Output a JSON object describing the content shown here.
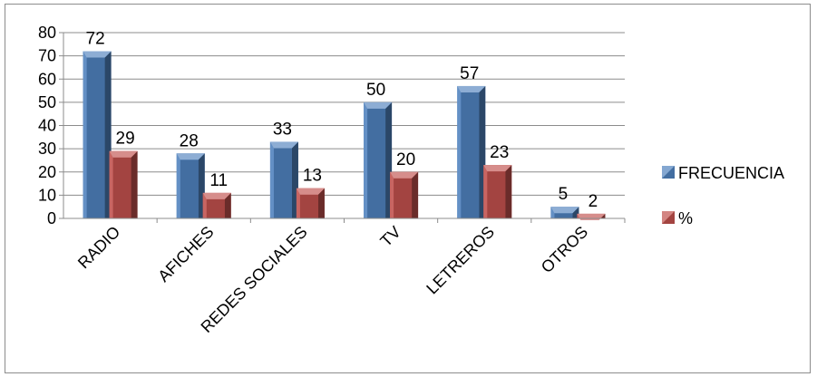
{
  "chart_data": {
    "type": "bar",
    "title": "",
    "xlabel": "",
    "ylabel": "",
    "categories": [
      "RADIO",
      "AFICHES",
      "REDES SOCIALES",
      "TV",
      "LETREROS",
      "OTROS"
    ],
    "series": [
      {
        "name": "FRECUENCIA",
        "values": [
          72,
          28,
          33,
          50,
          57,
          5
        ],
        "labels": [
          "72",
          "28",
          "33",
          "50",
          "57",
          "5"
        ],
        "color": "#4f81bd"
      },
      {
        "name": "%",
        "values": [
          29,
          11,
          13,
          20,
          23,
          2
        ],
        "labels": [
          "29",
          "11",
          "13",
          "20",
          "23",
          "2"
        ],
        "color": "#c0504d"
      }
    ],
    "ylim": [
      0,
      80
    ],
    "yticks": [
      "0",
      "10",
      "20",
      "30",
      "40",
      "50",
      "60",
      "70",
      "80"
    ],
    "grid": true,
    "legend_position": "right",
    "bar_style": "3d-pyramid-top"
  }
}
